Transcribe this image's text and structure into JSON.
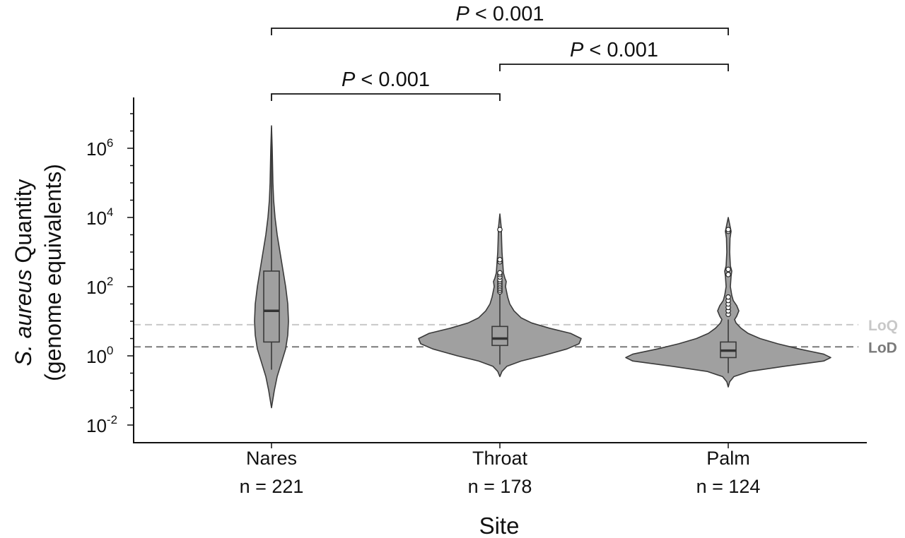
{
  "chart_data": {
    "type": "violin",
    "ylabel_italic": "S. aureus",
    "ylabel_rest": " Quantity",
    "ylabel_line2": "(genome equivalents)",
    "xlabel": "Site",
    "y_scale": "log10",
    "ylim_log10": [
      -2.6,
      7.5
    ],
    "y_ticks": [
      {
        "base": "10",
        "exp": "-2",
        "log10": -2
      },
      {
        "base": "10",
        "exp": "0",
        "log10": 0
      },
      {
        "base": "10",
        "exp": "2",
        "log10": 2
      },
      {
        "base": "10",
        "exp": "4",
        "log10": 4
      },
      {
        "base": "10",
        "exp": "6",
        "log10": 6
      }
    ],
    "categories": [
      {
        "name": "Nares",
        "n_label": "n = 221",
        "violin_min_log10": -1.5,
        "violin_max_log10": 6.65,
        "q1_log10": 0.4,
        "median_log10": 1.3,
        "q3_log10": 2.45,
        "whisker_low_log10": -0.4,
        "whisker_high_log10": 6.6,
        "outliers_log10": []
      },
      {
        "name": "Throat",
        "n_label": "n = 178",
        "violin_min_log10": -0.6,
        "violin_max_log10": 4.1,
        "q1_log10": 0.3,
        "median_log10": 0.5,
        "q3_log10": 0.85,
        "whisker_low_log10": -0.25,
        "whisker_high_log10": 1.8,
        "outliers_log10": [
          1.85,
          1.9,
          1.95,
          2.0,
          2.05,
          2.1,
          2.15,
          2.2,
          2.28,
          2.35,
          2.4,
          2.72,
          2.78,
          3.65
        ]
      },
      {
        "name": "Palm",
        "n_label": "n = 124",
        "violin_min_log10": -0.9,
        "violin_max_log10": 4.0,
        "q1_log10": -0.05,
        "median_log10": 0.15,
        "q3_log10": 0.4,
        "whisker_low_log10": -0.5,
        "whisker_high_log10": 1.05,
        "outliers_log10": [
          1.2,
          1.3,
          1.4,
          1.5,
          1.6,
          1.7,
          2.35,
          2.5,
          3.6,
          3.65
        ]
      }
    ],
    "reference_lines": [
      {
        "label": "LoQ",
        "log10": 0.9,
        "color": "#c8c8c8"
      },
      {
        "label": "LoD",
        "log10": 0.26,
        "color": "#7a7a7a"
      }
    ],
    "comparisons": [
      {
        "from": 0,
        "to": 1,
        "p_italic": "P",
        "p_rest": " < 0.001"
      },
      {
        "from": 1,
        "to": 2,
        "p_italic": "P",
        "p_rest": " < 0.001"
      },
      {
        "from": 0,
        "to": 2,
        "p_italic": "P",
        "p_rest": " < 0.001"
      }
    ],
    "colors": {
      "violin_fill": "#a0a0a0",
      "violin_stroke": "#3a3a3a",
      "axis": "#111111"
    }
  }
}
